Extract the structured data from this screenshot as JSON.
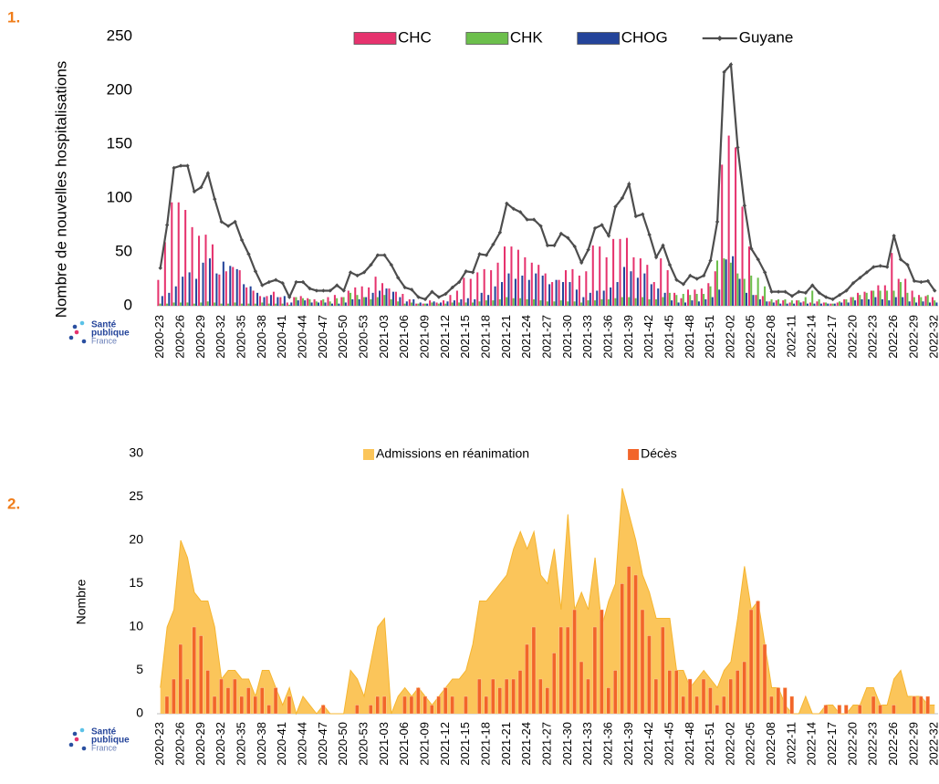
{
  "chart_data": [
    {
      "type": "bar",
      "panel_label": "1.",
      "y_label": "Nombre de nouvelles hospitalisations",
      "legend": "top",
      "logo": [
        "Santé",
        "publique",
        "France"
      ],
      "categories": [
        "2020-23",
        null,
        null,
        "2020-26",
        null,
        null,
        "2020-29",
        null,
        null,
        "2020-32",
        null,
        null,
        "2020-35",
        null,
        null,
        "2020-38",
        null,
        null,
        "2020-41",
        null,
        null,
        "2020-44",
        null,
        null,
        "2020-47",
        null,
        null,
        "2020-50",
        null,
        null,
        "2020-53",
        null,
        null,
        "2021-03",
        null,
        null,
        "2021-06",
        null,
        null,
        "2021-09",
        null,
        null,
        "2021-12",
        null,
        null,
        "2021-15",
        null,
        null,
        "2021-18",
        null,
        null,
        "2021-21",
        null,
        null,
        "2021-24",
        null,
        null,
        "2021-27",
        null,
        null,
        "2021-30",
        null,
        null,
        "2021-33",
        null,
        null,
        "2021-36",
        null,
        null,
        "2021-39",
        null,
        null,
        "2021-42",
        null,
        null,
        "2021-45",
        null,
        null,
        "2021-48",
        null,
        null,
        "2021-51",
        null,
        null,
        "2022-02",
        null,
        null,
        "2022-05",
        null,
        null,
        "2022-08",
        null,
        null,
        "2022-11",
        null,
        null,
        "2022-14",
        null,
        null,
        "2022-17",
        null,
        null,
        "2022-20",
        null,
        null,
        "2022-23",
        null,
        null,
        "2022-26",
        null,
        null,
        "2022-29",
        null,
        null,
        "2022-32"
      ],
      "series": [
        {
          "name": "CHC",
          "type": "bar",
          "color": "#e6336e",
          "values": [
            24,
            59,
            96,
            96,
            89,
            73,
            65,
            66,
            57,
            29,
            32,
            36,
            33,
            17,
            14,
            9,
            9,
            13,
            8,
            3,
            8,
            9,
            7,
            6,
            5,
            8,
            10,
            8,
            14,
            17,
            18,
            17,
            27,
            21,
            16,
            13,
            11,
            6,
            2,
            2,
            5,
            3,
            5,
            10,
            14,
            26,
            25,
            31,
            34,
            33,
            40,
            55,
            55,
            52,
            45,
            40,
            38,
            30,
            22,
            24,
            33,
            34,
            28,
            32,
            56,
            55,
            45,
            62,
            62,
            63,
            45,
            44,
            38,
            22,
            44,
            33,
            12,
            7,
            15,
            15,
            16,
            21,
            32,
            131,
            158,
            147,
            92,
            55,
            10,
            9,
            4,
            5,
            5,
            3,
            5,
            4,
            3,
            4,
            3,
            2,
            3,
            6,
            8,
            12,
            13,
            14,
            19,
            19,
            49,
            25,
            25,
            14,
            10,
            9,
            8
          ]
        },
        {
          "name": "CHK",
          "type": "bar",
          "color": "#6cbf4c",
          "values": [
            2,
            2,
            3,
            3,
            3,
            2,
            3,
            4,
            3,
            2,
            2,
            3,
            2,
            2,
            2,
            3,
            2,
            2,
            2,
            1,
            8,
            7,
            6,
            4,
            6,
            4,
            7,
            8,
            12,
            10,
            8,
            6,
            8,
            10,
            6,
            4,
            2,
            3,
            2,
            2,
            3,
            2,
            2,
            3,
            3,
            3,
            3,
            4,
            5,
            5,
            6,
            8,
            7,
            7,
            6,
            6,
            5,
            4,
            4,
            5,
            4,
            4,
            3,
            5,
            5,
            6,
            6,
            7,
            8,
            8,
            7,
            8,
            6,
            6,
            8,
            12,
            10,
            11,
            10,
            11,
            11,
            18,
            42,
            44,
            40,
            30,
            25,
            28,
            26,
            18,
            6,
            6,
            6,
            5,
            5,
            8,
            14,
            6,
            3,
            2,
            4,
            6,
            8,
            10,
            12,
            14,
            14,
            14,
            14,
            22,
            12,
            8,
            8,
            10,
            5
          ]
        },
        {
          "name": "CHOG",
          "type": "bar",
          "color": "#24449a",
          "values": [
            9,
            12,
            18,
            27,
            31,
            25,
            40,
            44,
            30,
            41,
            37,
            34,
            20,
            18,
            12,
            8,
            10,
            8,
            9,
            3,
            5,
            5,
            3,
            3,
            3,
            2,
            2,
            3,
            6,
            6,
            8,
            12,
            14,
            16,
            13,
            8,
            4,
            6,
            3,
            2,
            4,
            3,
            4,
            5,
            6,
            7,
            6,
            12,
            10,
            18,
            22,
            30,
            25,
            28,
            24,
            30,
            28,
            20,
            24,
            22,
            22,
            15,
            8,
            12,
            14,
            14,
            17,
            22,
            36,
            32,
            26,
            30,
            20,
            16,
            12,
            5,
            3,
            3,
            5,
            4,
            6,
            8,
            15,
            43,
            46,
            25,
            12,
            10,
            6,
            4,
            3,
            2,
            2,
            2,
            3,
            2,
            2,
            2,
            2,
            2,
            3,
            3,
            5,
            6,
            6,
            8,
            6,
            5,
            8,
            8,
            4,
            3,
            4,
            3,
            3
          ]
        },
        {
          "name": "Guyane",
          "type": "line",
          "color": "#4d4d4d",
          "values": [
            35,
            75,
            128,
            130,
            130,
            106,
            110,
            123,
            99,
            78,
            74,
            78,
            61,
            48,
            32,
            19,
            22,
            24,
            21,
            8,
            22,
            22,
            16,
            14,
            14,
            14,
            19,
            14,
            31,
            28,
            31,
            38,
            47,
            47,
            38,
            26,
            17,
            15,
            8,
            6,
            13,
            8,
            11,
            17,
            22,
            32,
            31,
            48,
            47,
            57,
            68,
            95,
            90,
            87,
            80,
            80,
            74,
            56,
            56,
            67,
            63,
            55,
            40,
            52,
            72,
            75,
            65,
            92,
            100,
            113,
            83,
            85,
            66,
            45,
            56,
            38,
            24,
            20,
            28,
            25,
            28,
            42,
            78,
            217,
            224,
            147,
            93,
            53,
            43,
            31,
            13,
            13,
            13,
            9,
            13,
            12,
            19,
            12,
            8,
            6,
            10,
            14,
            21,
            26,
            31,
            36,
            37,
            36,
            65,
            43,
            38,
            23,
            22,
            23,
            14
          ]
        }
      ],
      "ylim": [
        0,
        250
      ],
      "yticks": [
        0,
        50,
        100,
        150,
        200,
        250
      ]
    },
    {
      "type": "area",
      "panel_label": "2.",
      "y_label": "Nombre",
      "legend": "top",
      "logo": [
        "Santé",
        "publique",
        "France"
      ],
      "categories": [
        "2020-23",
        null,
        null,
        "2020-26",
        null,
        null,
        "2020-29",
        null,
        null,
        "2020-32",
        null,
        null,
        "2020-35",
        null,
        null,
        "2020-38",
        null,
        null,
        "2020-41",
        null,
        null,
        "2020-44",
        null,
        null,
        "2020-47",
        null,
        null,
        "2020-50",
        null,
        null,
        "2020-53",
        null,
        null,
        "2021-03",
        null,
        null,
        "2021-06",
        null,
        null,
        "2021-09",
        null,
        null,
        "2021-12",
        null,
        null,
        "2021-15",
        null,
        null,
        "2021-18",
        null,
        null,
        "2021-21",
        null,
        null,
        "2021-24",
        null,
        null,
        "2021-27",
        null,
        null,
        "2021-30",
        null,
        null,
        "2021-33",
        null,
        null,
        "2021-36",
        null,
        null,
        "2021-39",
        null,
        null,
        "2021-42",
        null,
        null,
        "2021-45",
        null,
        null,
        "2021-48",
        null,
        null,
        "2021-51",
        null,
        null,
        "2022-02",
        null,
        null,
        "2022-05",
        null,
        null,
        "2022-08",
        null,
        null,
        "2022-11",
        null,
        null,
        "2022-14",
        null,
        null,
        "2022-17",
        null,
        null,
        "2022-20",
        null,
        null,
        "2022-23",
        null,
        null,
        "2022-26",
        null,
        null,
        "2022-29",
        null,
        null,
        "2022-32"
      ],
      "series": [
        {
          "name": "Admissions en réanimation",
          "type": "area",
          "color": "#fbc55a",
          "values": [
            3,
            10,
            12,
            20,
            18,
            14,
            13,
            13,
            10,
            4,
            5,
            5,
            4,
            4,
            2,
            5,
            5,
            3,
            1,
            3,
            0,
            2,
            1,
            0,
            1,
            0,
            0,
            0,
            5,
            4,
            2,
            6,
            10,
            11,
            0,
            2,
            3,
            2,
            3,
            2,
            1,
            2,
            3,
            4,
            4,
            5,
            8,
            13,
            13,
            14,
            15,
            16,
            19,
            21,
            19,
            21,
            16,
            15,
            19,
            12,
            23,
            12,
            14,
            12,
            18,
            10,
            13,
            15,
            26,
            23,
            20,
            16,
            14,
            11,
            11,
            11,
            5,
            5,
            3,
            4,
            5,
            4,
            3,
            5,
            6,
            11,
            17,
            12,
            13,
            8,
            3,
            3,
            1,
            0,
            0,
            2,
            0,
            0,
            1,
            1,
            0,
            0,
            1,
            1,
            3,
            3,
            1,
            1,
            4,
            5,
            2,
            2,
            2,
            1,
            1
          ]
        },
        {
          "name": "Décès",
          "type": "bar",
          "color": "#f2652a",
          "values": [
            0,
            2,
            4,
            8,
            4,
            10,
            9,
            5,
            2,
            4,
            3,
            4,
            2,
            3,
            2,
            3,
            1,
            3,
            0,
            2,
            0,
            0,
            0,
            0,
            1,
            0,
            0,
            0,
            0,
            1,
            0,
            1,
            2,
            2,
            0,
            0,
            2,
            2,
            3,
            2,
            1,
            2,
            3,
            2,
            0,
            2,
            0,
            4,
            2,
            4,
            3,
            4,
            4,
            5,
            8,
            10,
            4,
            3,
            7,
            10,
            10,
            12,
            6,
            4,
            10,
            12,
            3,
            5,
            15,
            17,
            16,
            12,
            9,
            4,
            10,
            5,
            5,
            2,
            4,
            2,
            4,
            3,
            1,
            2,
            4,
            5,
            6,
            12,
            13,
            8,
            2,
            3,
            3,
            2,
            0,
            0,
            0,
            0,
            1,
            0,
            1,
            1,
            0,
            1,
            0,
            2,
            1,
            0,
            1,
            0,
            0,
            2,
            2,
            2,
            0
          ]
        }
      ],
      "ylim": [
        0,
        30
      ],
      "yticks": [
        0,
        5,
        10,
        15,
        20,
        25,
        30
      ]
    }
  ]
}
